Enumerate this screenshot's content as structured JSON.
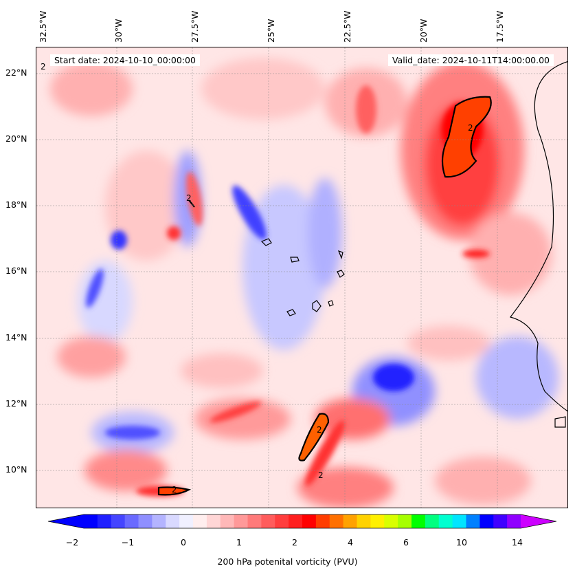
{
  "header": {
    "start_date": "Start date: 2024-10-10_00:00:00",
    "valid_date": "Valid_date: 2024-10-11T14:00:00.00"
  },
  "axes": {
    "lon_labels": [
      "32.5°W",
      "30°W",
      "27.5°W",
      "25°W",
      "22.5°W",
      "20°W",
      "17.5°W"
    ],
    "lat_labels": [
      "22°N",
      "20°N",
      "18°N",
      "16°N",
      "14°N",
      "12°N",
      "10°N"
    ]
  },
  "contour_label": "2",
  "colorbar": {
    "title": "200 hPa potenital vorticity (PVU)",
    "tick_labels": [
      "−2",
      "−1",
      "0",
      "1",
      "2",
      "4",
      "6",
      "10",
      "14"
    ],
    "colors": [
      "#0000ff",
      "#2020ff",
      "#4545ff",
      "#6a6aff",
      "#8f8fff",
      "#b4b4ff",
      "#d9d9ff",
      "#f0f0ff",
      "#ffeeee",
      "#ffd6d6",
      "#ffb8b8",
      "#ff9999",
      "#ff7a7a",
      "#ff5c5c",
      "#ff3d3d",
      "#ff1f1f",
      "#ff0000",
      "#ff3d00",
      "#ff7000",
      "#ffa200",
      "#ffd200",
      "#fff000",
      "#d9ff00",
      "#a6ff00",
      "#00ff00",
      "#00ff80",
      "#00ffd0",
      "#00e5ff",
      "#0080ff",
      "#0000ff",
      "#4000ff",
      "#9000ff"
    ],
    "under_color": "#0000ff",
    "over_color": "#cc00ff"
  }
}
